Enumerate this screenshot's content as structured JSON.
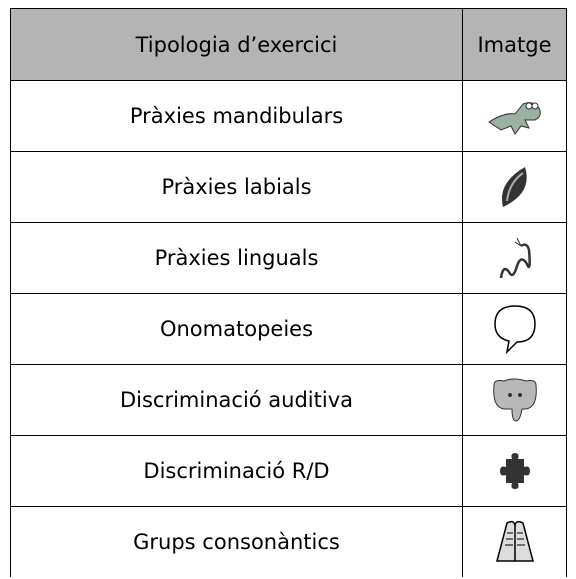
{
  "table": {
    "header": [
      "Tipologia d’exercici",
      "Imatge"
    ],
    "rows": [
      [
        "Pràxies mandibulars"
      ],
      [
        "Pràxies labials"
      ],
      [
        "Pràxies linguals"
      ],
      [
        "Onomatopeies"
      ],
      [
        "Discriminació auditiva"
      ],
      [
        "Discriminació R/D"
      ],
      [
        "Grups consonàntics"
      ]
    ]
  }
}
